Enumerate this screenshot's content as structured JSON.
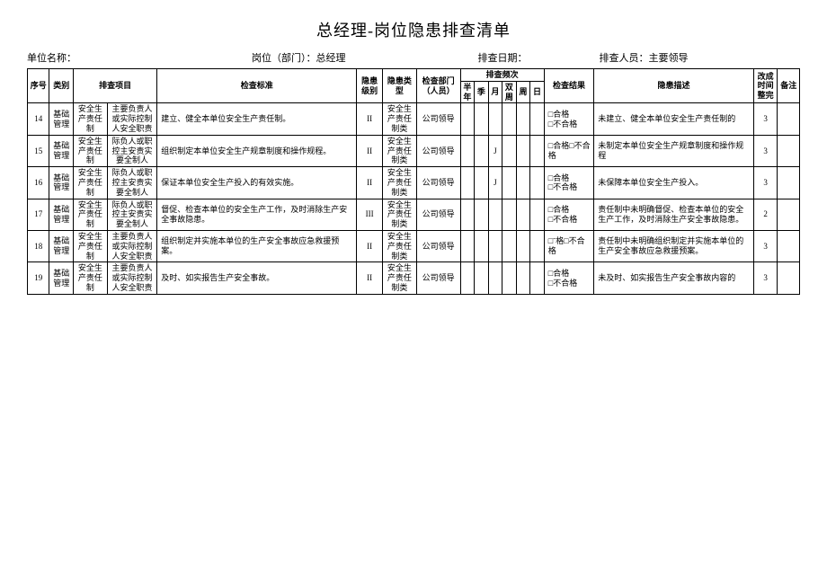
{
  "title": "总经理-岗位隐患排查清单",
  "info": {
    "unit_label": "单位名称：",
    "post_label": "岗位（部门）：",
    "post_value": "总经理",
    "date_label": "排查日期：",
    "person_label": "排查人员：",
    "person_value": "主要领导"
  },
  "header": {
    "seq": "序号",
    "cat": "类别",
    "item": "排查项目",
    "std": "检查标准",
    "lvl": "隐患级别",
    "type": "隐患类型",
    "dept": "检查部门（人员）",
    "freq": "排查频次",
    "freq_cols": [
      "半年",
      "季",
      "月",
      "双周",
      "周",
      "日"
    ],
    "res": "检查结果",
    "desc": "隐患描述",
    "time": "改成时间整完",
    "note": "备注"
  },
  "common": {
    "cat": "基础管理",
    "item_a": "安全生产责任制",
    "dept": "公司领导",
    "type": "安全生产责任制类",
    "res_a": "□合格",
    "res_b": "□不合格",
    "res_c": "□合格□不合格",
    "res_d": "□ˉ格□不合格"
  },
  "rows": [
    {
      "seq": "14",
      "item_b": "主要负责人或实际控制人安全职责",
      "std": "建立、健全本单位安全生产责任制。",
      "lvl": "II",
      "freq_mark": "",
      "res_mode": "two",
      "desc": "未建立、健全本单位安全生产责任制的",
      "time": "3"
    },
    {
      "seq": "15",
      "item_b": "际负人或职控主安责实要全制人",
      "std": "组织制定本单位安全生产规章制度和操作规程。",
      "lvl": "II",
      "freq_mark": "J",
      "res_mode": "one",
      "desc": "未制定本单位安全生产规章制度和操作规程",
      "time": "3"
    },
    {
      "seq": "16",
      "item_b": "际负人或职控主安责实要全制人",
      "std": "保证本单位安全生产投入的有效实施。",
      "lvl": "II",
      "freq_mark": "J",
      "res_mode": "two",
      "desc": "未保障本单位安全生产投入。",
      "time": "3"
    },
    {
      "seq": "17",
      "item_b": "际负人或职控主安责实要全制人",
      "std": "督促、检查本单位的安全生产工作，及时消除生产安全事故隐患。",
      "lvl": "III",
      "freq_mark": "",
      "res_mode": "two",
      "desc": "责任制中未明确督促、检查本单位的安全生产工作，及时消除生产安全事故隐患。",
      "time": "2"
    },
    {
      "seq": "18",
      "item_b": "主要负责人或实际控制人安全职责",
      "std": "组织制定并实施本单位的生产安全事故应急救援预案。",
      "lvl": "II",
      "freq_mark": "",
      "res_mode": "d",
      "desc": "责任制中未明确组织制定并实施本单位的生产安全事故应急救援预案。",
      "time": "3"
    },
    {
      "seq": "19",
      "item_b": "主要负责人或实际控制人安全职责",
      "std": "及时、如实报告生产安全事故。",
      "lvl": "II",
      "freq_mark": "",
      "res_mode": "two",
      "desc": "未及时、如实报告生产安全事故内容的",
      "time": "3"
    }
  ]
}
